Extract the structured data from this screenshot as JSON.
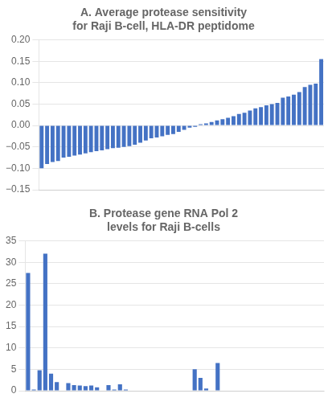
{
  "chart_data": [
    {
      "type": "bar",
      "title": "A. Average protease sensitivity\nfor Raji B-cell, HLA-DR peptidome",
      "categories": [
        null,
        null,
        null,
        null,
        null,
        null,
        null,
        null,
        null,
        null,
        null,
        null,
        null,
        null,
        null,
        null,
        null,
        null,
        null,
        null,
        null,
        null,
        null,
        null,
        null,
        null,
        null,
        null,
        null,
        null,
        null,
        null,
        null,
        null,
        null,
        null,
        null,
        null,
        null,
        null,
        null,
        null,
        null,
        null,
        null,
        null,
        null,
        null,
        null,
        null,
        null,
        null
      ],
      "values": [
        -0.1,
        -0.09,
        -0.085,
        -0.083,
        -0.075,
        -0.073,
        -0.07,
        -0.068,
        -0.065,
        -0.062,
        -0.06,
        -0.058,
        -0.055,
        -0.053,
        -0.052,
        -0.05,
        -0.048,
        -0.045,
        -0.04,
        -0.035,
        -0.03,
        -0.028,
        -0.025,
        -0.022,
        -0.02,
        -0.015,
        -0.01,
        -0.005,
        -0.003,
        0.003,
        0.005,
        0.008,
        0.012,
        0.015,
        0.018,
        0.022,
        0.027,
        0.03,
        0.035,
        0.04,
        0.043,
        0.047,
        0.05,
        0.053,
        0.065,
        0.068,
        0.072,
        0.078,
        0.09,
        0.095,
        0.098,
        0.155
      ],
      "color": "#4472C4",
      "ylim": [
        -0.15,
        0.2
      ],
      "yticks": [
        {
          "value": -0.15,
          "label": "−0.15"
        },
        {
          "value": -0.1,
          "label": "−0.10"
        },
        {
          "value": -0.05,
          "label": "−0.05"
        },
        {
          "value": 0.0,
          "label": "0.00"
        },
        {
          "value": 0.05,
          "label": "0.05"
        },
        {
          "value": 0.1,
          "label": "0.10"
        },
        {
          "value": 0.15,
          "label": "0.15"
        },
        {
          "value": 0.2,
          "label": "0.20"
        }
      ],
      "grid": true,
      "tick_labels": "y"
    },
    {
      "type": "bar",
      "title": "B. Protease gene RNA Pol 2\nlevels for Raji B-cells",
      "categories": [
        null,
        null,
        null,
        null,
        null,
        null,
        null,
        null,
        null,
        null,
        null,
        null,
        null,
        null,
        null,
        null,
        null,
        null,
        null,
        null,
        null,
        null,
        null,
        null,
        null,
        null,
        null,
        null,
        null,
        null,
        null,
        null,
        null,
        null,
        null,
        null,
        null,
        null,
        null,
        null,
        null,
        null,
        null,
        null,
        null,
        null,
        null,
        null,
        null,
        null,
        null,
        null
      ],
      "values": [
        27.5,
        0.3,
        4.8,
        32.0,
        4.0,
        2.0,
        0.0,
        1.8,
        1.3,
        1.2,
        1.1,
        1.2,
        0.8,
        0.0,
        1.3,
        0.3,
        1.5,
        0.3,
        0.0,
        0.0,
        0.0,
        0.0,
        0.0,
        0.0,
        0.0,
        0.0,
        0.0,
        0.0,
        0.0,
        5.0,
        3.0,
        0.5,
        0.0,
        6.5,
        0.0,
        0.0,
        0.0,
        0.0,
        0.0,
        0.0,
        0.0,
        0.0,
        0.0,
        0.0,
        0.0,
        0.0,
        0.0,
        0.0,
        0.0,
        0.0,
        0.0,
        0.0
      ],
      "color": "#4472C4",
      "ylim": [
        0,
        35
      ],
      "yticks": [
        0,
        5,
        10,
        15,
        20,
        25,
        30,
        35
      ],
      "grid": true,
      "tick_labels": "y"
    }
  ]
}
